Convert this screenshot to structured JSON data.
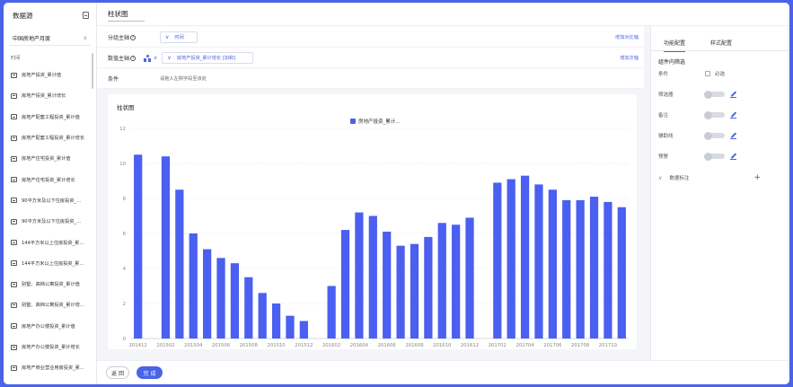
{
  "sidebar": {
    "title": "数据源",
    "dataset": "中国房地产月度",
    "field_header": "时间",
    "fields": [
      "房地产投资_累计值",
      "房地产投资_累计增长",
      "房地产配套工程投资_累计值",
      "房地产配套工程投资_累计增长",
      "房地产住宅投资_累计值",
      "房地产住宅投资_累计增长",
      "90平方米及以下住房投资_...",
      "90平方米及以下住房投资_...",
      "144平方米以上住房投资_累...",
      "144平方米以上住房投资_累...",
      "别墅、高档公寓投资_累计值",
      "别墅、高档公寓投资_累计增...",
      "房地产办公楼投资_累计值",
      "房地产办公楼投资_累计增长",
      "房地产商业营业用房投资_累..."
    ]
  },
  "header": {
    "chart_name": "柱状图"
  },
  "config": {
    "group_axis_label": "分组主轴",
    "group_axis_value": "时间",
    "group_axis_link": "增加对比轴",
    "value_axis_label": "数值主轴",
    "value_axis_value": "房地产投资_累计增长 [加和]",
    "value_axis_link": "增加次轴",
    "condition_label": "条件",
    "condition_placeholder": "请拖入左侧字段至该处",
    "help_glyph": "?",
    "chevron_glyph": "∨"
  },
  "chart_card": {
    "title": "柱状图"
  },
  "chart_data": {
    "type": "bar",
    "title": "",
    "xlabel": "",
    "ylabel": "",
    "ylim": [
      0,
      12
    ],
    "yticks": [
      0,
      2,
      4,
      6,
      8,
      10,
      12
    ],
    "grid": true,
    "legend": "top-center",
    "series": [
      {
        "name": "房地产投资_累计...",
        "color": "#4b5ff0",
        "values": [
          10.5,
          null,
          10.4,
          8.5,
          6.0,
          5.1,
          4.6,
          4.3,
          3.5,
          2.6,
          2.0,
          1.3,
          1.0,
          null,
          3.0,
          6.2,
          7.2,
          7.0,
          6.1,
          5.3,
          5.4,
          5.8,
          6.6,
          6.5,
          6.9,
          null,
          8.9,
          9.1,
          9.3,
          8.8,
          8.5,
          7.9,
          7.9,
          8.1,
          7.8,
          7.5
        ]
      }
    ],
    "categories": [
      "201412",
      "201501",
      "201502",
      "201503",
      "201504",
      "201505",
      "201506",
      "201507",
      "201508",
      "201509",
      "201510",
      "201511",
      "201512",
      "201601",
      "201602",
      "201603",
      "201604",
      "201605",
      "201606",
      "201607",
      "201608",
      "201609",
      "201610",
      "201611",
      "201612",
      "201701",
      "201702",
      "201703",
      "201704",
      "201705",
      "201706",
      "201707",
      "201708",
      "201709",
      "201710",
      "201711"
    ],
    "tick_labels": [
      "201412",
      "201502",
      "201504",
      "201506",
      "201508",
      "201510",
      "201512",
      "201602",
      "201604",
      "201606",
      "201608",
      "201610",
      "201612",
      "201702",
      "201704",
      "201706",
      "201708",
      "201710"
    ]
  },
  "right_panel": {
    "tabs": [
      "功能配置",
      "样式配置"
    ],
    "section_title": "组件内筛选",
    "rows": [
      {
        "label": "条件",
        "control": "checkbox",
        "text": "必选"
      },
      {
        "label": "筛选器",
        "control": "toggle"
      },
      {
        "label": "备注",
        "control": "toggle"
      },
      {
        "label": "辅助线",
        "control": "toggle"
      },
      {
        "label": "预警",
        "control": "toggle"
      }
    ],
    "data_label_section": "数据标注",
    "plus_glyph": "+"
  },
  "footer": {
    "back_label": "返 回",
    "done_label": "完 成"
  }
}
